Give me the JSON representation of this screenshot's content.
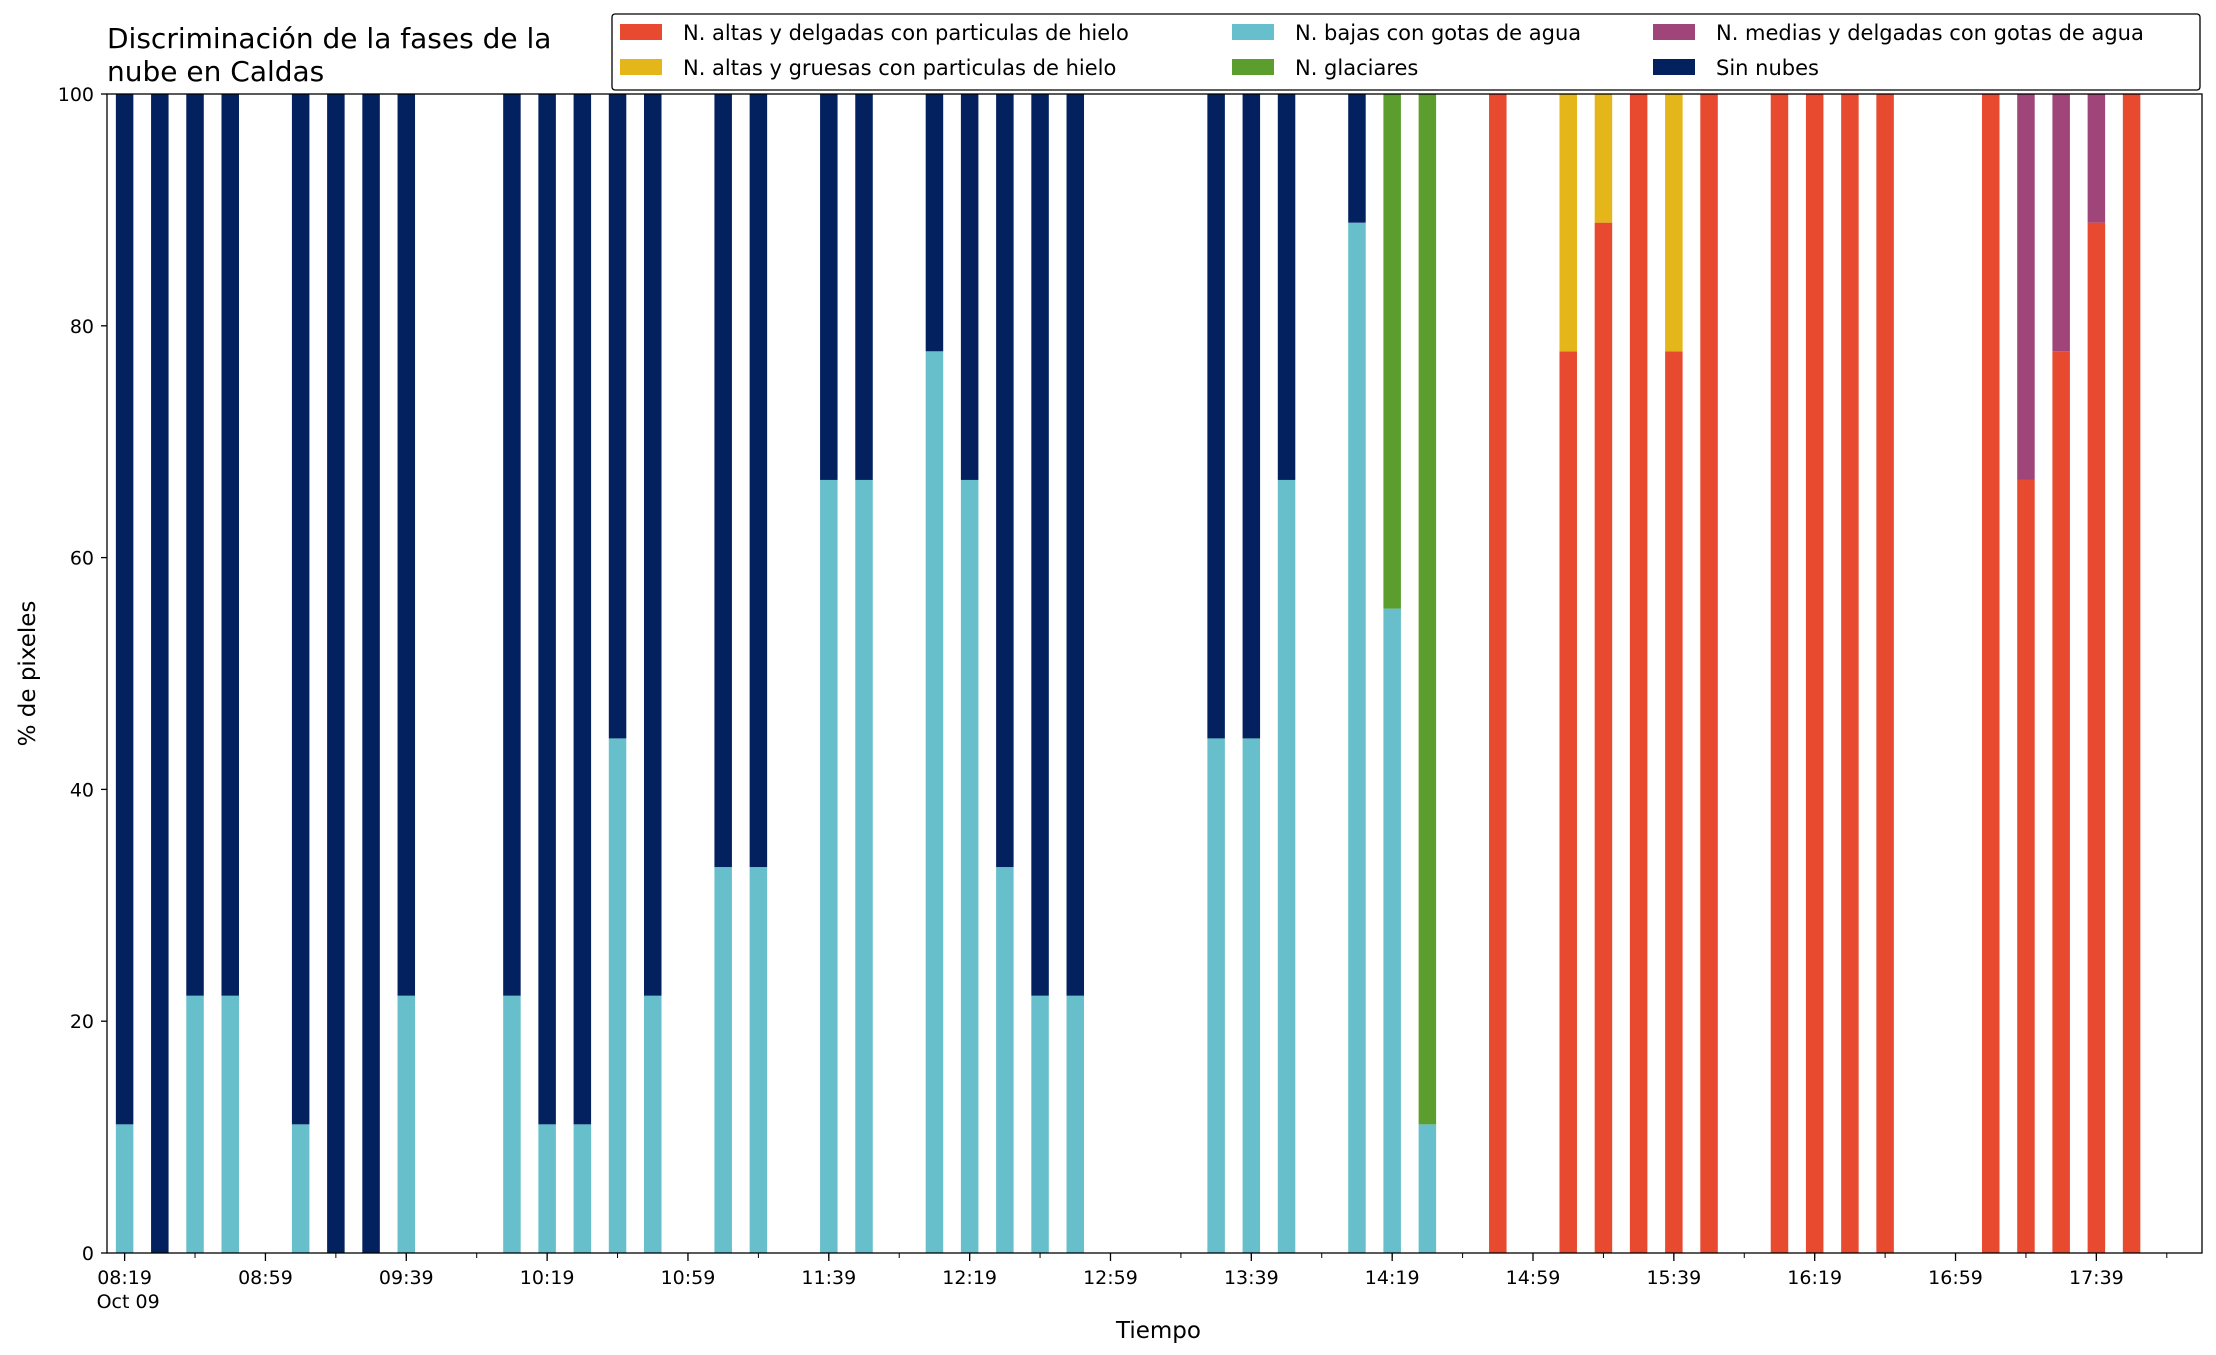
{
  "chart_data": {
    "type": "bar",
    "stacked": true,
    "title": "Discriminación de la fases de la nube en Caldas",
    "title_lines": [
      "Discriminación de la fases de la",
      "nube en Caldas"
    ],
    "xlabel": "Tiempo",
    "ylabel": "% de pixeles",
    "ylim": [
      0,
      100
    ],
    "yticks": [
      "0",
      "20",
      "40",
      "60",
      "80",
      "100"
    ],
    "xlim": [
      "08:14",
      "18:09"
    ],
    "xticks": [
      {
        "time": "08:19",
        "label": "08:19",
        "sublabel": "Oct 09"
      },
      {
        "time": "08:59",
        "label": "08:59"
      },
      {
        "time": "09:39",
        "label": "09:39"
      },
      {
        "time": "10:19",
        "label": "10:19"
      },
      {
        "time": "10:59",
        "label": "10:59"
      },
      {
        "time": "11:39",
        "label": "11:39"
      },
      {
        "time": "12:19",
        "label": "12:19"
      },
      {
        "time": "12:59",
        "label": "12:59"
      },
      {
        "time": "13:39",
        "label": "13:39"
      },
      {
        "time": "14:19",
        "label": "14:19"
      },
      {
        "time": "14:59",
        "label": "14:59"
      },
      {
        "time": "15:39",
        "label": "15:39"
      },
      {
        "time": "16:19",
        "label": "16:19"
      },
      {
        "time": "16:59",
        "label": "16:59"
      },
      {
        "time": "17:39",
        "label": "17:39"
      }
    ],
    "legend_position": "top-right",
    "series": [
      {
        "name": "N. altas y delgadas con particulas de hielo",
        "color": "#e84a2f"
      },
      {
        "name": "N. altas y gruesas con particulas de hielo",
        "color": "#e4b619"
      },
      {
        "name": "N. bajas con gotas de agua",
        "color": "#67bfcc"
      },
      {
        "name": "N. glaciares",
        "color": "#5c9e2e"
      },
      {
        "name": "N. medias y delgadas con gotas de agua",
        "color": "#a0457a"
      },
      {
        "name": "Sin nubes",
        "color": "#03215f"
      }
    ],
    "stack_order": [
      "N. altas y delgadas con particulas de hielo",
      "N. medias y delgadas con gotas de agua",
      "N. altas y gruesas con particulas de hielo",
      "N. bajas con gotas de agua",
      "N. glaciares",
      "Sin nubes"
    ],
    "bars": [
      {
        "time": "08:19",
        "values": {
          "N. bajas con gotas de agua": 11.1,
          "Sin nubes": 88.9
        }
      },
      {
        "time": "08:29",
        "values": {
          "Sin nubes": 100
        }
      },
      {
        "time": "08:39",
        "values": {
          "N. bajas con gotas de agua": 22.2,
          "Sin nubes": 77.8
        }
      },
      {
        "time": "08:49",
        "values": {
          "N. bajas con gotas de agua": 22.2,
          "Sin nubes": 77.8
        }
      },
      {
        "time": "09:09",
        "values": {
          "N. bajas con gotas de agua": 11.1,
          "Sin nubes": 88.9
        }
      },
      {
        "time": "09:19",
        "values": {
          "Sin nubes": 100
        }
      },
      {
        "time": "09:29",
        "values": {
          "Sin nubes": 100
        }
      },
      {
        "time": "09:39",
        "values": {
          "N. bajas con gotas de agua": 22.2,
          "Sin nubes": 77.8
        }
      },
      {
        "time": "10:09",
        "values": {
          "N. bajas con gotas de agua": 22.2,
          "Sin nubes": 77.8
        }
      },
      {
        "time": "10:19",
        "values": {
          "N. bajas con gotas de agua": 11.1,
          "Sin nubes": 88.9
        }
      },
      {
        "time": "10:29",
        "values": {
          "N. bajas con gotas de agua": 11.1,
          "Sin nubes": 88.9
        }
      },
      {
        "time": "10:39",
        "values": {
          "N. bajas con gotas de agua": 44.4,
          "Sin nubes": 55.6
        }
      },
      {
        "time": "10:49",
        "values": {
          "N. bajas con gotas de agua": 22.2,
          "Sin nubes": 77.8
        }
      },
      {
        "time": "11:09",
        "values": {
          "N. bajas con gotas de agua": 33.3,
          "Sin nubes": 66.7
        }
      },
      {
        "time": "11:19",
        "values": {
          "N. bajas con gotas de agua": 33.3,
          "Sin nubes": 66.7
        }
      },
      {
        "time": "11:39",
        "values": {
          "N. bajas con gotas de agua": 66.7,
          "Sin nubes": 33.3
        }
      },
      {
        "time": "11:49",
        "values": {
          "N. bajas con gotas de agua": 66.7,
          "Sin nubes": 33.3
        }
      },
      {
        "time": "12:09",
        "values": {
          "N. bajas con gotas de agua": 77.8,
          "Sin nubes": 22.2
        }
      },
      {
        "time": "12:19",
        "values": {
          "N. bajas con gotas de agua": 66.7,
          "Sin nubes": 33.3
        }
      },
      {
        "time": "12:29",
        "values": {
          "N. bajas con gotas de agua": 33.3,
          "Sin nubes": 66.7
        }
      },
      {
        "time": "12:39",
        "values": {
          "N. bajas con gotas de agua": 22.2,
          "Sin nubes": 77.8
        }
      },
      {
        "time": "12:49",
        "values": {
          "N. bajas con gotas de agua": 22.2,
          "Sin nubes": 77.8
        }
      },
      {
        "time": "13:29",
        "values": {
          "N. bajas con gotas de agua": 44.4,
          "Sin nubes": 55.6
        }
      },
      {
        "time": "13:39",
        "values": {
          "N. bajas con gotas de agua": 44.4,
          "Sin nubes": 55.6
        }
      },
      {
        "time": "13:49",
        "values": {
          "N. bajas con gotas de agua": 66.7,
          "Sin nubes": 33.3
        }
      },
      {
        "time": "14:09",
        "values": {
          "N. bajas con gotas de agua": 88.9,
          "Sin nubes": 11.1
        }
      },
      {
        "time": "14:19",
        "values": {
          "N. bajas con gotas de agua": 55.6,
          "N. glaciares": 44.4
        }
      },
      {
        "time": "14:29",
        "values": {
          "N. bajas con gotas de agua": 11.1,
          "N. glaciares": 88.9
        }
      },
      {
        "time": "14:49",
        "values": {
          "N. altas y delgadas con particulas de hielo": 100
        }
      },
      {
        "time": "15:09",
        "values": {
          "N. altas y delgadas con particulas de hielo": 77.8,
          "N. altas y gruesas con particulas de hielo": 22.2
        }
      },
      {
        "time": "15:19",
        "values": {
          "N. altas y delgadas con particulas de hielo": 88.9,
          "N. altas y gruesas con particulas de hielo": 11.1
        }
      },
      {
        "time": "15:29",
        "values": {
          "N. altas y delgadas con particulas de hielo": 100
        }
      },
      {
        "time": "15:39",
        "values": {
          "N. altas y delgadas con particulas de hielo": 77.8,
          "N. altas y gruesas con particulas de hielo": 22.2
        }
      },
      {
        "time": "15:49",
        "values": {
          "N. altas y delgadas con particulas de hielo": 100
        }
      },
      {
        "time": "16:09",
        "values": {
          "N. altas y delgadas con particulas de hielo": 100
        }
      },
      {
        "time": "16:19",
        "values": {
          "N. altas y delgadas con particulas de hielo": 100
        }
      },
      {
        "time": "16:29",
        "values": {
          "N. altas y delgadas con particulas de hielo": 100
        }
      },
      {
        "time": "16:39",
        "values": {
          "N. altas y delgadas con particulas de hielo": 100
        }
      },
      {
        "time": "17:09",
        "values": {
          "N. altas y delgadas con particulas de hielo": 100
        }
      },
      {
        "time": "17:19",
        "values": {
          "N. altas y delgadas con particulas de hielo": 66.7,
          "N. medias y delgadas con gotas de agua": 33.3
        }
      },
      {
        "time": "17:29",
        "values": {
          "N. altas y delgadas con particulas de hielo": 77.8,
          "N. medias y delgadas con gotas de agua": 22.2
        }
      },
      {
        "time": "17:39",
        "values": {
          "N. altas y delgadas con particulas de hielo": 88.9,
          "N. medias y delgadas con gotas de agua": 11.1
        }
      },
      {
        "time": "17:49",
        "values": {
          "N. altas y delgadas con particulas de hielo": 100
        }
      }
    ]
  }
}
